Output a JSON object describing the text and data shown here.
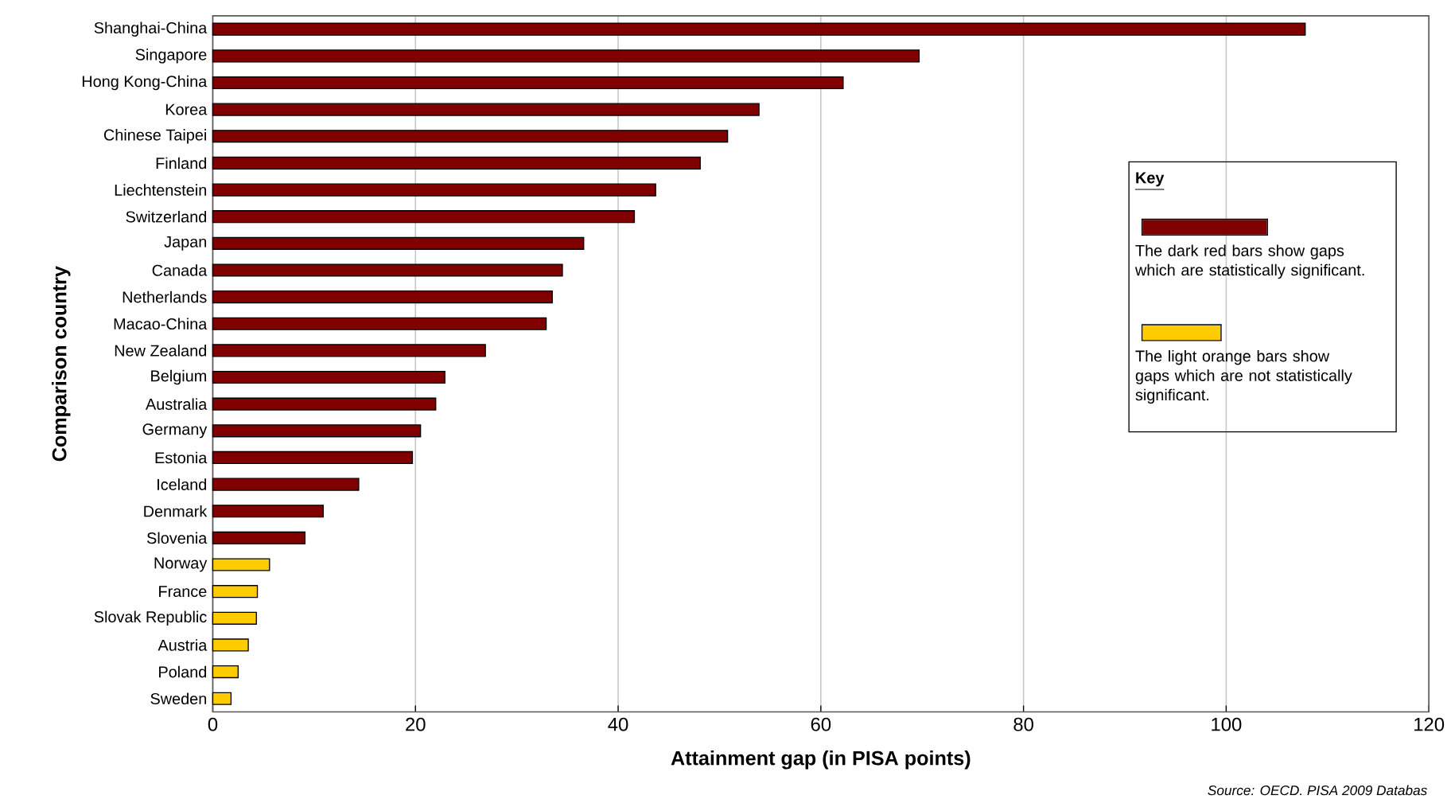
{
  "chart_data": {
    "type": "bar",
    "orientation": "horizontal",
    "stacked": true,
    "xlabel": "Attainment gap (in PISA points)",
    "ylabel": "Comparison country",
    "legend_title": "Key",
    "categories": [
      "Shanghai-China",
      "Singapore",
      "Hong Kong-China",
      "Korea",
      "Chinese Taipei",
      "Finland",
      "Liechtenstein",
      "Switzerland",
      "Japan",
      "Canada",
      "Netherlands",
      "Macao-China",
      "New Zealand",
      "Belgium",
      "Australia",
      "Germany",
      "Estonia",
      "Iceland",
      "Denmark",
      "Slovenia",
      "Norway",
      "France",
      "Slovak Republic",
      "Austria",
      "Poland",
      "Sweden"
    ],
    "series": [
      {
        "name": "The dark red bars show gaps which are statistically significant.",
        "color": "#800000",
        "values": [
          107.8,
          69.7,
          62.2,
          53.9,
          50.8,
          48.1,
          43.7,
          41.6,
          36.6,
          34.5,
          33.5,
          32.9,
          26.9,
          22.9,
          22.0,
          20.5,
          19.7,
          14.4,
          10.9,
          9.1,
          null,
          null,
          null,
          null,
          null,
          null
        ]
      },
      {
        "name": "The light orange bars show gaps which are not statistically significant.",
        "color": "#ffcc00",
        "values": [
          null,
          null,
          null,
          null,
          null,
          null,
          null,
          null,
          null,
          null,
          null,
          null,
          null,
          null,
          null,
          null,
          null,
          null,
          null,
          null,
          5.6,
          4.4,
          4.3,
          3.5,
          2.5,
          1.8
        ]
      }
    ],
    "xlim": [
      0,
      120
    ],
    "xticks": [
      0,
      20,
      40,
      60,
      80,
      100,
      120
    ],
    "grid": "x",
    "legend": "right",
    "annotations": [
      "Source: OECD. PISA 2009 Databas"
    ]
  }
}
